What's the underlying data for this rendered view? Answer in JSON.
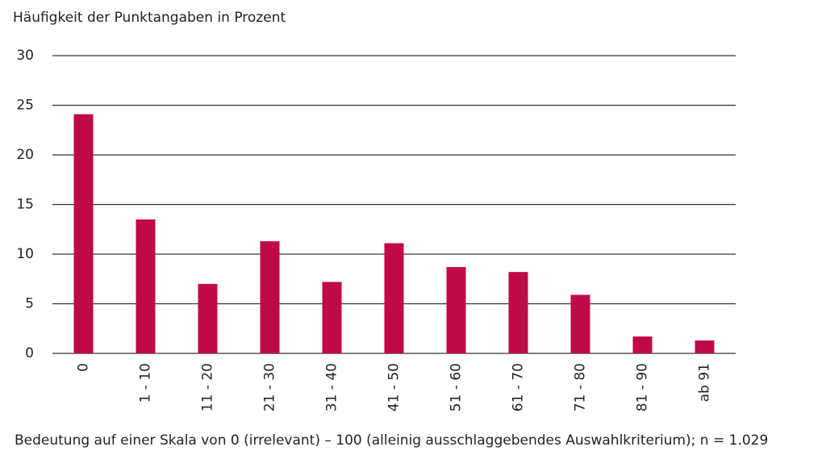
{
  "chart_data": {
    "type": "bar",
    "title": "Häufigkeit der Punktangaben in Prozent",
    "x_label": "Bedeutung auf einer Skala von 0 (irrelevant) – 100 (alleinig ausschlaggebendes Auswahlkriterium); n = 1.029",
    "categories": [
      "0",
      "1 - 10",
      "11 - 20",
      "21 - 30",
      "31 - 40",
      "41 - 50",
      "51 - 60",
      "61 - 70",
      "71 - 80",
      "81 - 90",
      "ab 91"
    ],
    "values": [
      24.1,
      13.5,
      7.0,
      11.3,
      7.2,
      11.1,
      8.7,
      8.2,
      5.9,
      1.7,
      1.3
    ],
    "color": "#bf0a46",
    "ylim": [
      0,
      30
    ],
    "yticks": [
      0,
      5,
      10,
      15,
      20,
      25,
      30
    ],
    "grid": true
  }
}
